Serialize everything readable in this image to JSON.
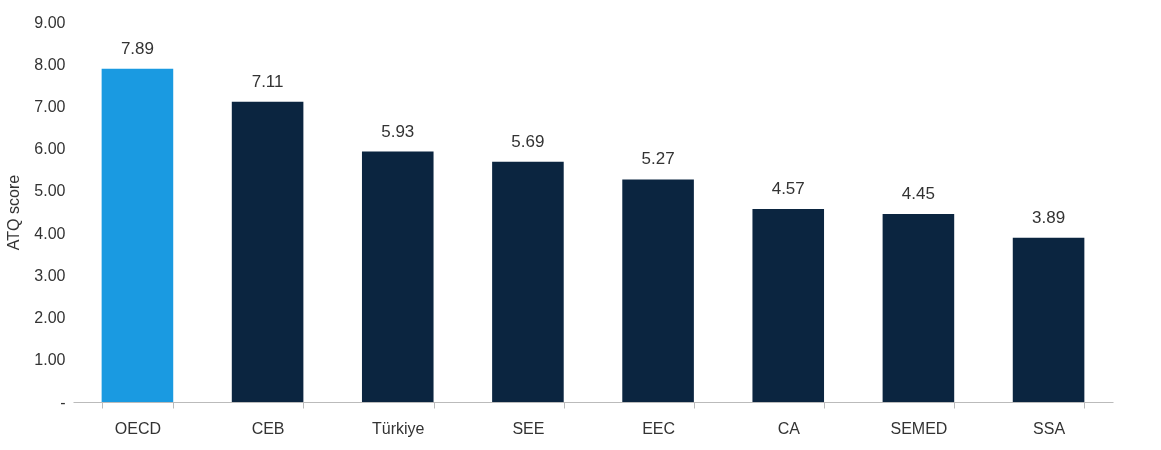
{
  "chart_data": {
    "type": "bar",
    "ylabel": "ATQ score",
    "categories": [
      "OECD",
      "CEB",
      "Türkiye",
      "SEE",
      "EEC",
      "CA",
      "SEMED",
      "SSA"
    ],
    "values": [
      7.89,
      7.11,
      5.93,
      5.69,
      5.27,
      4.57,
      4.45,
      3.89
    ],
    "colors": [
      "#1a9ae1",
      "#0b2540",
      "#0b2540",
      "#0b2540",
      "#0b2540",
      "#0b2540",
      "#0b2540",
      "#0b2540"
    ],
    "ylim": [
      0,
      9
    ],
    "yticks": [
      {
        "value": 0,
        "label": "-"
      },
      {
        "value": 1,
        "label": "1.00"
      },
      {
        "value": 2,
        "label": "2.00"
      },
      {
        "value": 3,
        "label": "3.00"
      },
      {
        "value": 4,
        "label": "4.00"
      },
      {
        "value": 5,
        "label": "5.00"
      },
      {
        "value": 6,
        "label": "6.00"
      },
      {
        "value": 7,
        "label": "7.00"
      },
      {
        "value": 8,
        "label": "8.00"
      },
      {
        "value": 9,
        "label": "9.00"
      }
    ],
    "data_labels": true,
    "grid": false
  }
}
